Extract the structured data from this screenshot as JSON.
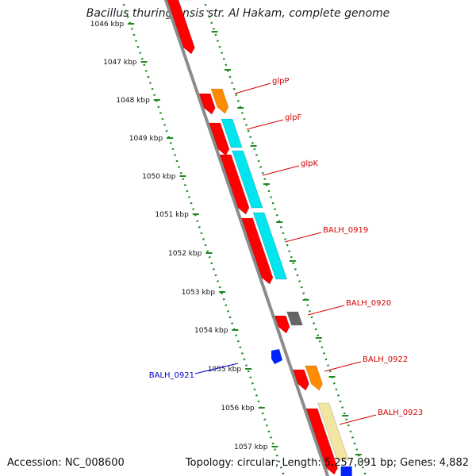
{
  "title": "Bacillus thuringiensis str. Al Hakam, complete genome",
  "footer": {
    "accession": "Accession: NC_008600",
    "summary": "Topology: circular; Length: 5,257,091 bp; Genes: 4,882"
  },
  "colors": {
    "backbone": "#8c8c8c",
    "ruler": "#1f8a1f",
    "strand_plus_label": "#d40000",
    "strand_minus_label": "#0000cc",
    "cds": "#ff0000",
    "rna_orange": "#ff8c00",
    "cyan": "#00e5ee",
    "gray_feature": "#666666",
    "pale_yellow": "#f3e6a3",
    "blue_feature": "#0022ff"
  },
  "ruler_ticks": [
    {
      "label": "1046 kbp"
    },
    {
      "label": "1047 kbp"
    },
    {
      "label": "1048 kbp"
    },
    {
      "label": "1049 kbp"
    },
    {
      "label": "1050 kbp"
    },
    {
      "label": "1051 kbp"
    },
    {
      "label": "1052 kbp"
    },
    {
      "label": "1053 kbp"
    },
    {
      "label": "1054 kbp"
    },
    {
      "label": "1055 kbp"
    },
    {
      "label": "1056 kbp"
    },
    {
      "label": "1057 kbp"
    }
  ],
  "gene_labels": [
    {
      "name": "glpP",
      "strand": "plus"
    },
    {
      "name": "glpF",
      "strand": "plus"
    },
    {
      "name": "glpK",
      "strand": "plus"
    },
    {
      "name": "BALH_0919",
      "strand": "plus"
    },
    {
      "name": "BALH_0920",
      "strand": "plus"
    },
    {
      "name": "BALH_0922",
      "strand": "plus"
    },
    {
      "name": "BALH_0923",
      "strand": "plus"
    },
    {
      "name": "BALH_0921",
      "strand": "minus"
    }
  ]
}
